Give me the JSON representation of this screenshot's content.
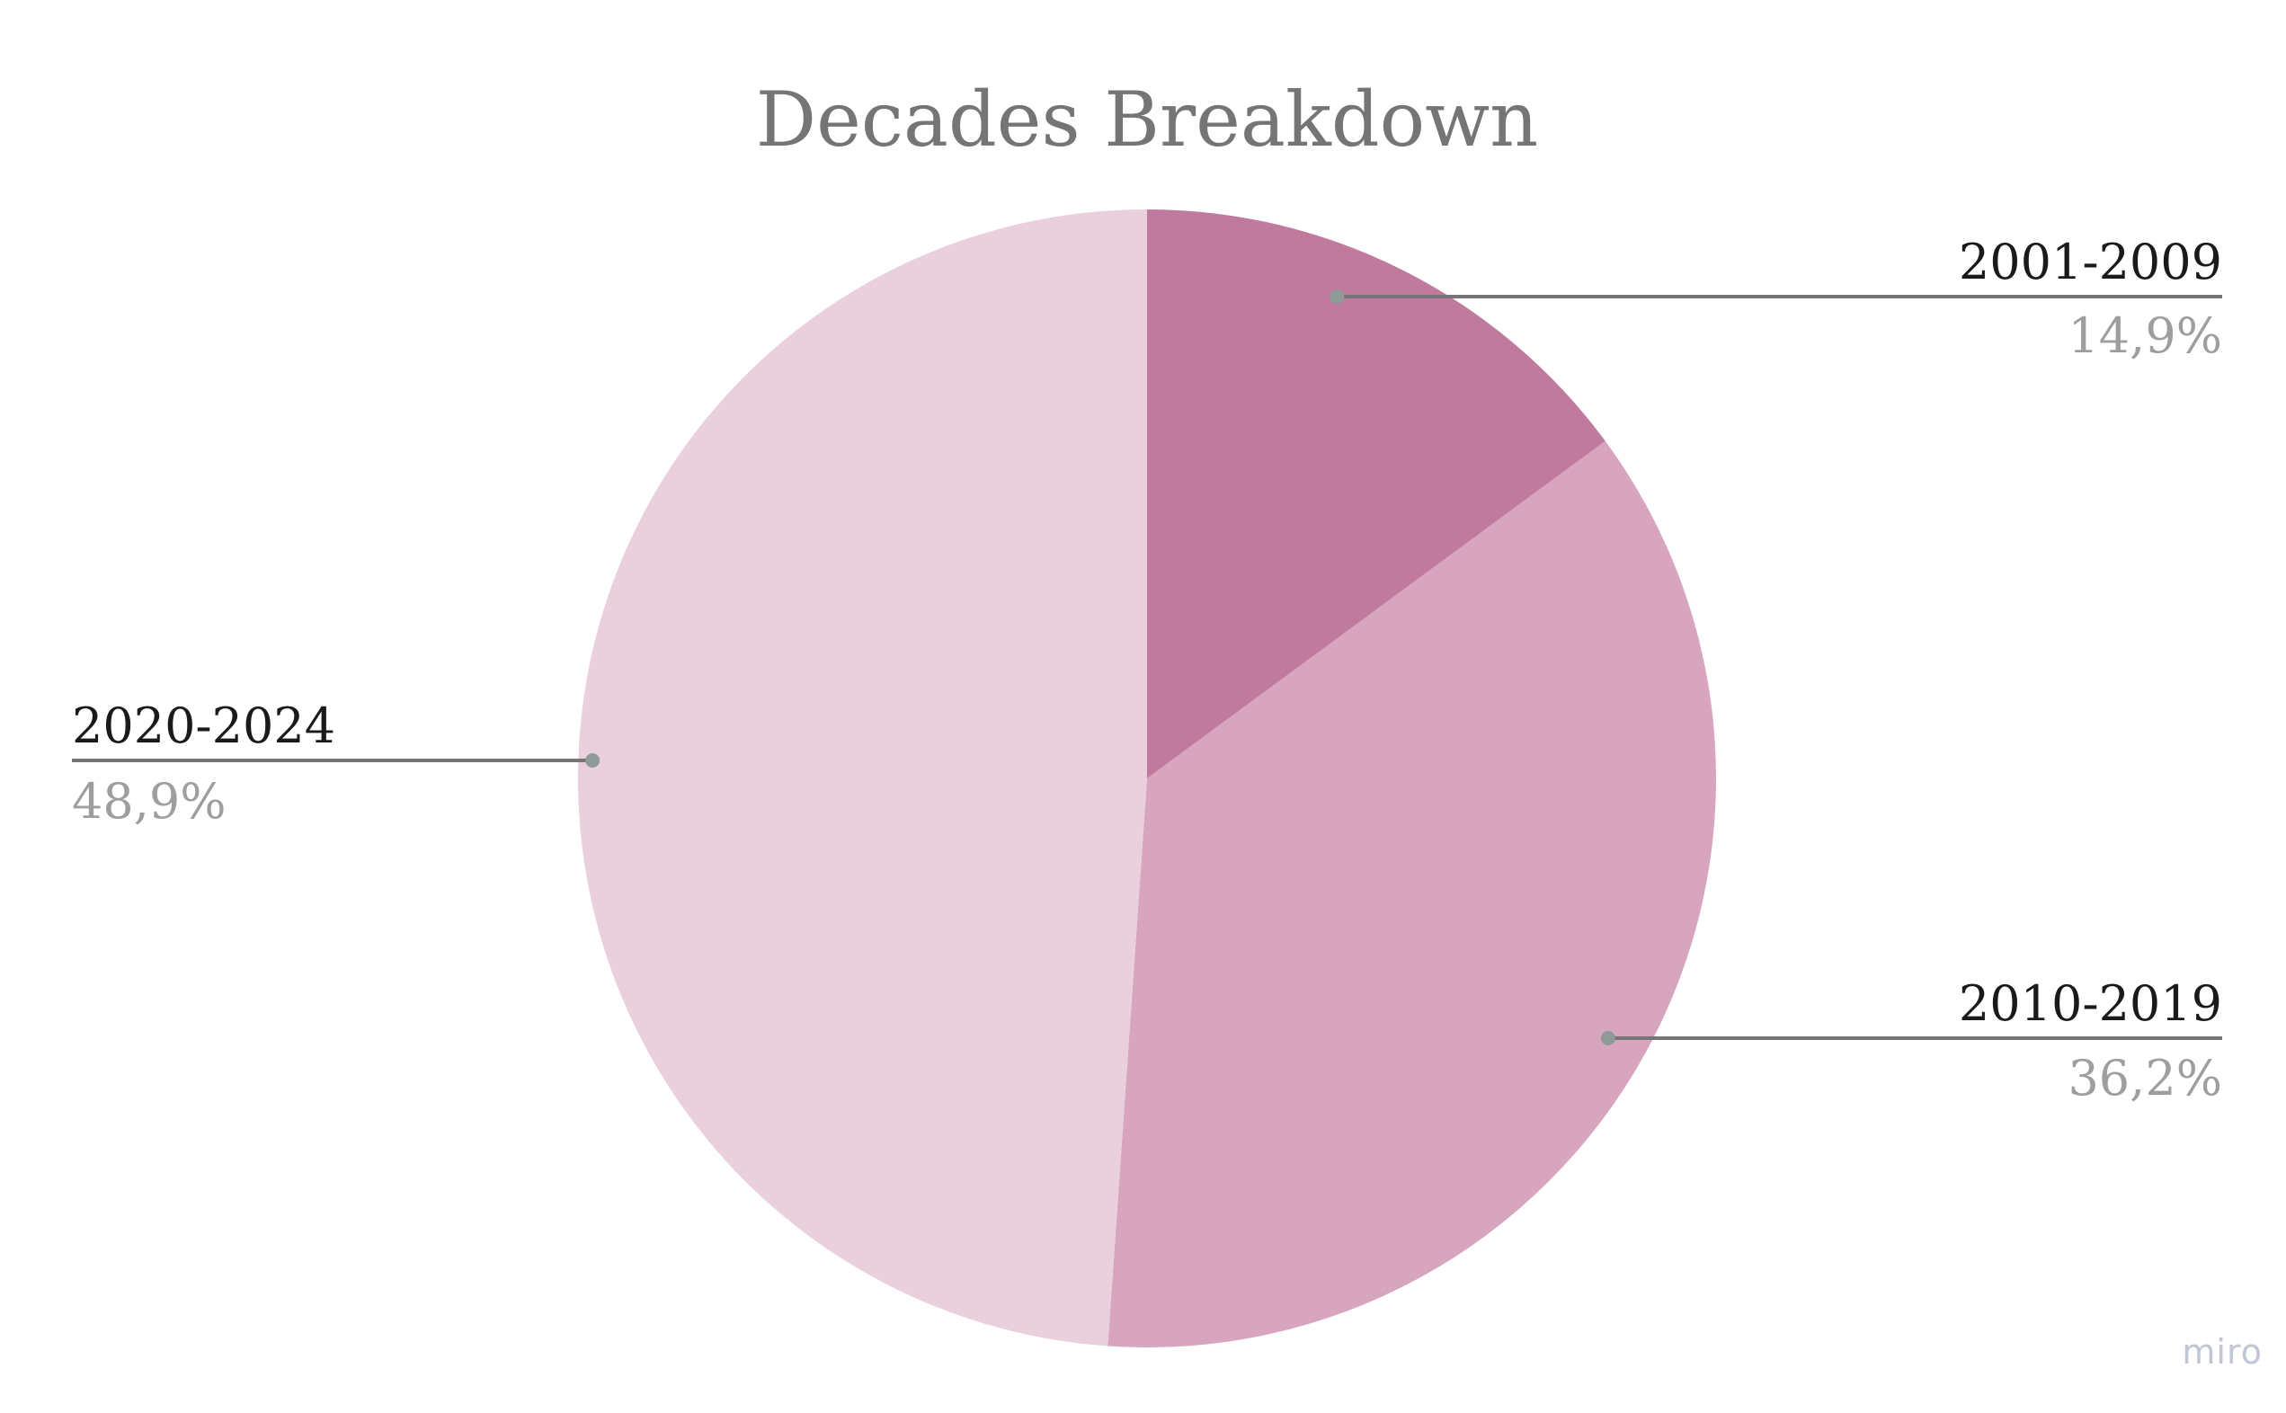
{
  "watermark": "miro",
  "chart_data": {
    "type": "pie",
    "title": "Decades Breakdown",
    "slices": [
      {
        "label": "2001-2009",
        "value": 14.9,
        "display": "14,9%",
        "color": "#c07a9e"
      },
      {
        "label": "2010-2019",
        "value": 36.2,
        "display": "36,2%",
        "color": "#d7a5be"
      },
      {
        "label": "2020-2024",
        "value": 48.9,
        "display": "48,9%",
        "color": "#ead0dc"
      }
    ],
    "legend": "none",
    "labels": "outside with leader lines"
  }
}
